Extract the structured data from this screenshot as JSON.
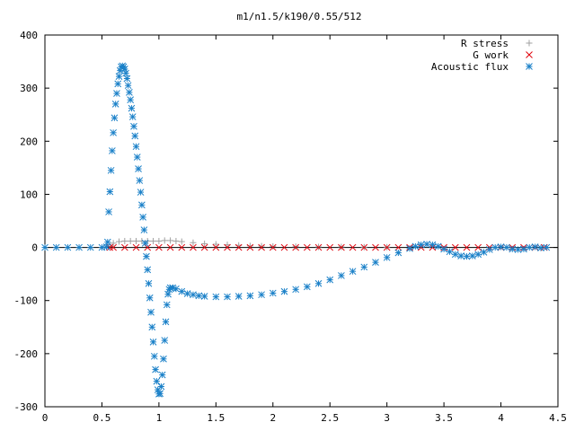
{
  "chart_data": {
    "type": "scatter",
    "title": "m1/n1.5/k190/0.55/512",
    "xlabel": "",
    "ylabel": "",
    "xlim": [
      0,
      4.5
    ],
    "ylim": [
      -300,
      400
    ],
    "x_ticks": [
      "0",
      "0.5",
      "1",
      "1.5",
      "2",
      "2.5",
      "3",
      "3.5",
      "4",
      "4.5"
    ],
    "x_tick_values": [
      0,
      0.5,
      1,
      1.5,
      2,
      2.5,
      3,
      3.5,
      4,
      4.5
    ],
    "y_ticks": [
      "400",
      "300",
      "200",
      "100",
      "0",
      "-100",
      "-200",
      "-300"
    ],
    "y_tick_values": [
      400,
      300,
      200,
      100,
      0,
      -100,
      -200,
      -300
    ],
    "legend_placement": "top-right",
    "grid": false,
    "series": [
      {
        "name": "R stress",
        "marker": "plus",
        "color": "#a0a0a0",
        "points": [
          [
            0.57,
            2
          ],
          [
            0.6,
            8
          ],
          [
            0.65,
            11
          ],
          [
            0.7,
            12
          ],
          [
            0.75,
            12
          ],
          [
            0.8,
            12
          ],
          [
            0.85,
            12
          ],
          [
            0.9,
            12
          ],
          [
            0.95,
            12
          ],
          [
            1.0,
            12
          ],
          [
            1.05,
            13
          ],
          [
            1.1,
            13
          ],
          [
            1.15,
            12
          ],
          [
            1.2,
            11
          ],
          [
            1.3,
            9
          ],
          [
            1.4,
            7
          ],
          [
            1.5,
            6
          ],
          [
            1.6,
            5
          ],
          [
            1.7,
            4
          ],
          [
            1.8,
            3
          ],
          [
            1.9,
            2.5
          ],
          [
            2.0,
            2
          ],
          [
            2.2,
            1.5
          ],
          [
            2.4,
            1
          ],
          [
            2.6,
            1
          ],
          [
            2.8,
            0.5
          ],
          [
            3.0,
            0.5
          ]
        ]
      },
      {
        "name": "G work",
        "marker": "cross",
        "color": "#e0000a",
        "points": [
          [
            0.57,
            0
          ],
          [
            0.6,
            0
          ],
          [
            0.7,
            0
          ],
          [
            0.8,
            0
          ],
          [
            0.9,
            0
          ],
          [
            1.0,
            0
          ],
          [
            1.1,
            0
          ],
          [
            1.2,
            0
          ],
          [
            1.3,
            0
          ],
          [
            1.4,
            0
          ],
          [
            1.5,
            0
          ],
          [
            1.6,
            0
          ],
          [
            1.7,
            0
          ],
          [
            1.8,
            0
          ],
          [
            1.9,
            0
          ],
          [
            2.0,
            0
          ],
          [
            2.1,
            0
          ],
          [
            2.2,
            0
          ],
          [
            2.3,
            0
          ],
          [
            2.4,
            0
          ],
          [
            2.5,
            0
          ],
          [
            2.6,
            0
          ],
          [
            2.7,
            0
          ],
          [
            2.8,
            0
          ],
          [
            2.9,
            0
          ],
          [
            3.0,
            0
          ],
          [
            3.1,
            0
          ],
          [
            3.2,
            0
          ],
          [
            3.3,
            0
          ],
          [
            3.4,
            0
          ],
          [
            3.5,
            0
          ],
          [
            3.6,
            0
          ],
          [
            3.7,
            0
          ],
          [
            3.8,
            0
          ],
          [
            3.9,
            0
          ],
          [
            4.0,
            0
          ],
          [
            4.1,
            0
          ],
          [
            4.2,
            0
          ],
          [
            4.3,
            0
          ],
          [
            4.38,
            0
          ]
        ]
      },
      {
        "name": "Acoustic flux",
        "marker": "star",
        "color": "#1a80c8",
        "points": [
          [
            0,
            0
          ],
          [
            0.1,
            0
          ],
          [
            0.2,
            0
          ],
          [
            0.3,
            0
          ],
          [
            0.4,
            0
          ],
          [
            0.5,
            0
          ],
          [
            0.54,
            1
          ],
          [
            0.55,
            10
          ],
          [
            0.56,
            67
          ],
          [
            0.57,
            105
          ],
          [
            0.58,
            145
          ],
          [
            0.59,
            182
          ],
          [
            0.6,
            216
          ],
          [
            0.61,
            244
          ],
          [
            0.62,
            270
          ],
          [
            0.63,
            290
          ],
          [
            0.64,
            308
          ],
          [
            0.65,
            322
          ],
          [
            0.66,
            333
          ],
          [
            0.67,
            340
          ],
          [
            0.68,
            342
          ],
          [
            0.69,
            340
          ],
          [
            0.7,
            336
          ],
          [
            0.71,
            328
          ],
          [
            0.72,
            318
          ],
          [
            0.73,
            305
          ],
          [
            0.74,
            292
          ],
          [
            0.75,
            278
          ],
          [
            0.76,
            262
          ],
          [
            0.77,
            246
          ],
          [
            0.78,
            228
          ],
          [
            0.79,
            210
          ],
          [
            0.8,
            190
          ],
          [
            0.81,
            170
          ],
          [
            0.82,
            148
          ],
          [
            0.83,
            126
          ],
          [
            0.84,
            104
          ],
          [
            0.85,
            80
          ],
          [
            0.86,
            57
          ],
          [
            0.87,
            33
          ],
          [
            0.88,
            8
          ],
          [
            0.89,
            -17
          ],
          [
            0.9,
            -42
          ],
          [
            0.91,
            -68
          ],
          [
            0.92,
            -95
          ],
          [
            0.93,
            -122
          ],
          [
            0.94,
            -150
          ],
          [
            0.95,
            -178
          ],
          [
            0.96,
            -205
          ],
          [
            0.97,
            -230
          ],
          [
            0.98,
            -252
          ],
          [
            0.99,
            -268
          ],
          [
            1.0,
            -276
          ],
          [
            1.01,
            -275
          ],
          [
            1.02,
            -262
          ],
          [
            1.03,
            -240
          ],
          [
            1.04,
            -210
          ],
          [
            1.05,
            -175
          ],
          [
            1.06,
            -140
          ],
          [
            1.07,
            -108
          ],
          [
            1.08,
            -88
          ],
          [
            1.09,
            -79
          ],
          [
            1.1,
            -76
          ],
          [
            1.12,
            -76
          ],
          [
            1.15,
            -78
          ],
          [
            1.2,
            -83
          ],
          [
            1.25,
            -87
          ],
          [
            1.3,
            -89
          ],
          [
            1.35,
            -91
          ],
          [
            1.4,
            -92
          ],
          [
            1.5,
            -93
          ],
          [
            1.6,
            -93
          ],
          [
            1.7,
            -92
          ],
          [
            1.8,
            -91
          ],
          [
            1.9,
            -89
          ],
          [
            2.0,
            -86
          ],
          [
            2.1,
            -83
          ],
          [
            2.2,
            -79
          ],
          [
            2.3,
            -74
          ],
          [
            2.4,
            -68
          ],
          [
            2.5,
            -61
          ],
          [
            2.6,
            -53
          ],
          [
            2.7,
            -45
          ],
          [
            2.8,
            -37
          ],
          [
            2.9,
            -28
          ],
          [
            3.0,
            -19
          ],
          [
            3.1,
            -10
          ],
          [
            3.2,
            -2
          ],
          [
            3.25,
            2
          ],
          [
            3.3,
            5
          ],
          [
            3.35,
            6
          ],
          [
            3.4,
            5
          ],
          [
            3.45,
            2
          ],
          [
            3.5,
            -3
          ],
          [
            3.55,
            -8
          ],
          [
            3.6,
            -13
          ],
          [
            3.65,
            -16
          ],
          [
            3.7,
            -17
          ],
          [
            3.75,
            -16
          ],
          [
            3.8,
            -13
          ],
          [
            3.85,
            -9
          ],
          [
            3.9,
            -4
          ],
          [
            3.95,
            0
          ],
          [
            4.0,
            1
          ],
          [
            4.05,
            0
          ],
          [
            4.1,
            -3
          ],
          [
            4.15,
            -4
          ],
          [
            4.2,
            -3
          ],
          [
            4.25,
            0
          ],
          [
            4.3,
            1
          ],
          [
            4.35,
            -1
          ],
          [
            4.4,
            0
          ]
        ]
      }
    ]
  }
}
